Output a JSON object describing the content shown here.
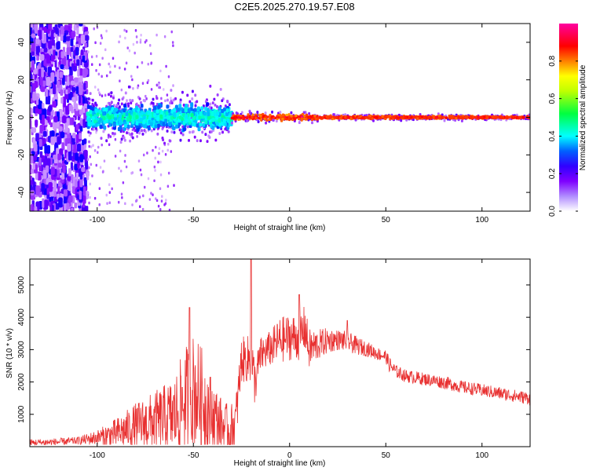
{
  "title": "C2E5.2025.270.19.57.E08",
  "chart_data": [
    {
      "type": "heatmap",
      "xlabel": "Height of straight line (km)",
      "ylabel": "Frequency (Hz)",
      "xlim": [
        -135,
        125
      ],
      "ylim": [
        -50,
        50
      ],
      "xticks": [
        -100,
        -50,
        0,
        50,
        100
      ],
      "yticks": [
        -40,
        -20,
        0,
        20,
        40
      ],
      "colorbar": {
        "label": "Normalized spectral amplitude",
        "range": [
          0,
          1
        ],
        "ticks": [
          0.0,
          0.2,
          0.4,
          0.6,
          0.8
        ],
        "tick_labels": [
          "0.0",
          "0.2",
          "0.4",
          "0.6",
          "0.8"
        ],
        "colormap": [
          "#ffffff",
          "#7f00ff",
          "#0000ff",
          "#00ffff",
          "#00ff00",
          "#ffff00",
          "#ff7f00",
          "#ff0000",
          "#ff00ff"
        ]
      },
      "regions": [
        {
          "x_range": [
            -135,
            -105
          ],
          "description": "scattered noise across all frequencies",
          "amplitude": [
            0.05,
            0.25
          ]
        },
        {
          "x_range": [
            -105,
            -30
          ],
          "freq_center": 0,
          "freq_halfwidth": 8,
          "amplitude": [
            0.2,
            0.45
          ]
        },
        {
          "x_range": [
            -30,
            15
          ],
          "freq_center": 0,
          "freq_halfwidth": 2,
          "amplitude": [
            0.6,
            0.95
          ]
        },
        {
          "x_range": [
            15,
            125
          ],
          "freq_center": 0,
          "freq_halfwidth": 1,
          "amplitude": [
            0.7,
            0.9
          ]
        }
      ]
    },
    {
      "type": "line",
      "xlabel": "Height of straight line (km)",
      "ylabel": "SNR (10 * v/v)",
      "xlim": [
        -135,
        125
      ],
      "ylim": [
        0,
        5800
      ],
      "xticks": [
        -100,
        -50,
        0,
        50,
        100
      ],
      "yticks": [
        1000,
        2000,
        3000,
        4000,
        5000
      ],
      "color": "#e83030",
      "x": [
        -135,
        -120,
        -110,
        -100,
        -90,
        -80,
        -70,
        -60,
        -55,
        -50,
        -45,
        -40,
        -35,
        -31,
        -28,
        -25,
        -22,
        -20,
        -18,
        -15,
        -10,
        -5,
        0,
        5,
        8,
        10,
        15,
        20,
        25,
        30,
        35,
        40,
        45,
        50,
        52,
        55,
        60,
        70,
        80,
        90,
        100,
        110,
        120,
        125
      ],
      "envelope": [
        150,
        180,
        220,
        350,
        550,
        850,
        1050,
        1300,
        1900,
        2300,
        1900,
        1300,
        900,
        700,
        1000,
        2900,
        2900,
        3000,
        2200,
        3000,
        3200,
        3500,
        3600,
        3600,
        3900,
        3200,
        3300,
        3400,
        3400,
        3350,
        3200,
        3100,
        2950,
        2850,
        2600,
        2400,
        2250,
        2150,
        2050,
        1900,
        1800,
        1700,
        1600,
        1550
      ],
      "spread": [
        150,
        150,
        150,
        300,
        600,
        900,
        1200,
        1500,
        2000,
        2200,
        2000,
        1400,
        1000,
        1000,
        1000,
        900,
        900,
        1200,
        900,
        700,
        700,
        900,
        900,
        900,
        900,
        800,
        600,
        500,
        400,
        400,
        350,
        300,
        250,
        250,
        300,
        250,
        250,
        250,
        250,
        250,
        250,
        250,
        250,
        250
      ],
      "peaks": [
        {
          "x": -52,
          "y": 4300
        },
        {
          "x": -20,
          "y": 5800
        },
        {
          "x": 5,
          "y": 4700
        },
        {
          "x": 30,
          "y": 3900
        }
      ]
    }
  ]
}
